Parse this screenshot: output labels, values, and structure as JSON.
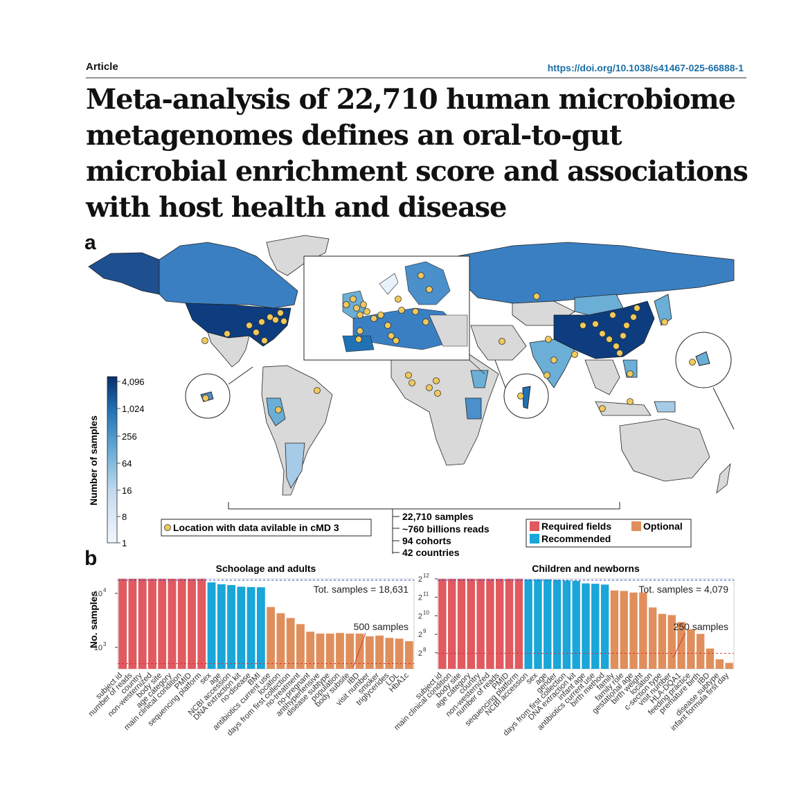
{
  "header": {
    "article_label": "Article",
    "doi": "https://doi.org/10.1038/s41467-025-66888-1"
  },
  "title": "Meta-analysis of 22,710 human microbiome metagenomes defines an oral-to-gut microbial enrichment score and associations with host health and disease",
  "panel_a": {
    "letter": "a",
    "colorbar": {
      "label": "Number of samples",
      "ticks": [
        "4,096",
        "1,024",
        "256",
        "64",
        "16",
        "8",
        "1"
      ],
      "low_color": "#eef4fb",
      "high_color": "#0d3d7f"
    },
    "location_legend": "Location with data avilable in cMD 3",
    "dot_color": "#f0c95a",
    "summary": [
      "22,710 samples",
      "~760 billions reads",
      "94 cohorts",
      "42 countries"
    ],
    "field_legend": [
      {
        "name": "Required fields",
        "color": "#e05a5f"
      },
      {
        "name": "Optional",
        "color": "#e08f5c"
      },
      {
        "name": "Recommended",
        "color": "#1aa6d8"
      }
    ]
  },
  "panel_b": {
    "letter": "b",
    "ylabel": "No. samples"
  },
  "chart_data": [
    {
      "type": "bar",
      "title": "Schoolage and adults",
      "ylabel": "No. samples",
      "yscale": "log10",
      "ytick_labels": [
        "10^4",
        "10^3"
      ],
      "total_label": "Tot. samples = 18,631",
      "threshold_label": "500 samples",
      "total_line": 18631,
      "threshold_line": 500,
      "categories": [
        "subject id",
        "number of reads",
        "country",
        "non-westernized",
        "body site",
        "age category",
        "main clinical condition",
        "PMID",
        "sequencing platform",
        "sex",
        "age",
        "NCBI accession",
        "DNA extraction kit",
        "no-disease",
        "BMI",
        "antibiotics current use",
        "location",
        "days from first collection",
        "no-treatment",
        "no-pregnant",
        "antihypertensive",
        "disease subtype",
        "population",
        "body subsite",
        "IBD",
        "visit number",
        "smoker",
        "triglycerides",
        "LDL",
        "HbA1c"
      ],
      "values": [
        18631,
        18631,
        18631,
        18631,
        18631,
        18631,
        18631,
        18631,
        18631,
        16000,
        14800,
        14300,
        13300,
        13100,
        13000,
        5600,
        4300,
        3500,
        2700,
        1950,
        1800,
        1800,
        1850,
        1800,
        1800,
        1600,
        1650,
        1500,
        1450,
        1300
      ],
      "groups": [
        "required",
        "required",
        "required",
        "required",
        "required",
        "required",
        "required",
        "required",
        "required",
        "recommended",
        "recommended",
        "recommended",
        "recommended",
        "recommended",
        "recommended",
        "optional",
        "optional",
        "optional",
        "optional",
        "optional",
        "optional",
        "optional",
        "optional",
        "optional",
        "optional",
        "optional",
        "optional",
        "optional",
        "optional",
        "optional"
      ]
    },
    {
      "type": "bar",
      "title": "Children and newborns",
      "ylabel": "",
      "yscale": "log2",
      "ytick_labels": [
        "2^12",
        "2^11",
        "2^10",
        "2^9",
        "2^8"
      ],
      "total_label": "Tot. samples = 4,079",
      "threshold_label": "250 samples",
      "total_line": 4079,
      "threshold_line": 250,
      "categories": [
        "subject id",
        "main clinical condition",
        "body site",
        "age category",
        "country",
        "non-westernized",
        "number of reads",
        "PMID",
        "sequencing platform",
        "NCBI accession",
        "sex",
        "age",
        "gender",
        "days from first collection",
        "DNA extraction kit",
        "infant age",
        "antibiotics current use",
        "birth method",
        "family",
        "family role",
        "gestational age",
        "birth weight",
        "location",
        "c-section type",
        "visit number",
        "HLA-DQA1",
        "feeding practice",
        "premature birth",
        "IBD",
        "disease subtype",
        "infant formula first day"
      ],
      "values": [
        4079,
        4079,
        4079,
        4079,
        4079,
        4079,
        4079,
        4079,
        4079,
        4000,
        4000,
        4000,
        3950,
        3850,
        3800,
        3450,
        3400,
        3300,
        2650,
        2600,
        2450,
        2450,
        1400,
        1100,
        1050,
        810,
        620,
        520,
        300,
        200,
        175
      ],
      "groups": [
        "required",
        "required",
        "required",
        "required",
        "required",
        "required",
        "required",
        "required",
        "required",
        "recommended",
        "recommended",
        "recommended",
        "recommended",
        "recommended",
        "recommended",
        "recommended",
        "recommended",
        "recommended",
        "optional",
        "optional",
        "optional",
        "optional",
        "optional",
        "optional",
        "optional",
        "optional",
        "optional",
        "optional",
        "optional",
        "optional",
        "optional"
      ]
    }
  ]
}
